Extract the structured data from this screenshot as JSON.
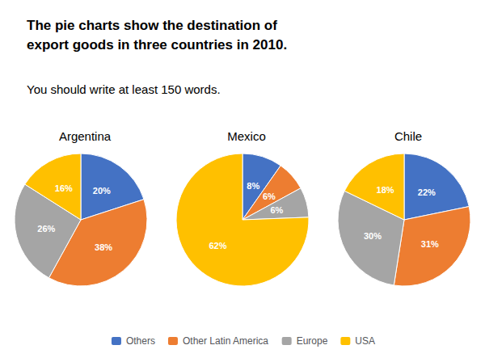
{
  "chart_data": {
    "type": "pie",
    "title": "The pie charts show the destination of\nexport goods in three countries in 2010.",
    "subtitle": "You should write at least 150 words.",
    "categories": [
      "Others",
      "Other Latin America",
      "Europe",
      "USA"
    ],
    "colors": [
      "#4472C4",
      "#ED7D31",
      "#A5A5A5",
      "#FFC000"
    ],
    "series": [
      {
        "name": "Argentina",
        "values": [
          20,
          38,
          26,
          16
        ],
        "value_labels": [
          "20%",
          "38%",
          "26%",
          "16%"
        ]
      },
      {
        "name": "Mexico",
        "values": [
          8,
          6,
          6,
          62
        ],
        "value_labels": [
          "8%",
          "6%",
          "6%",
          "62%"
        ]
      },
      {
        "name": "Chile",
        "values": [
          22,
          31,
          30,
          18
        ],
        "value_labels": [
          "22%",
          "31%",
          "30%",
          "18%"
        ]
      }
    ],
    "data_labels": true,
    "legend": "bottom"
  }
}
